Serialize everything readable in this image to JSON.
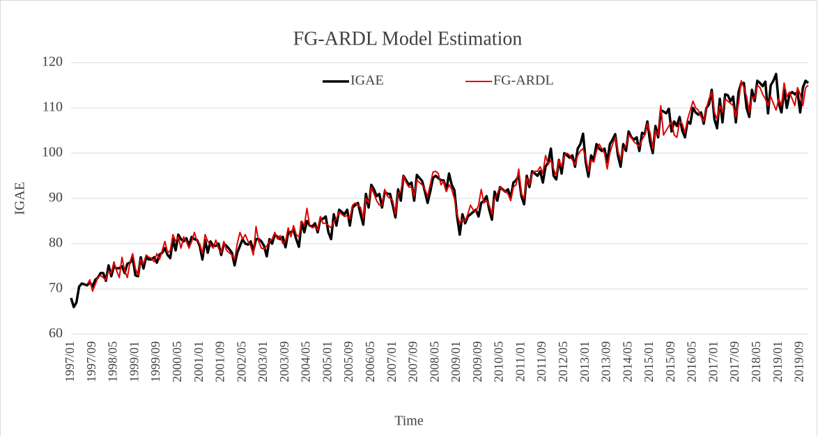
{
  "chart_data": {
    "type": "line",
    "title": "FG-ARDL Model Estimation",
    "x_label": "Time",
    "y_label": "IGAE",
    "categories": [
      "1997/01",
      null,
      null,
      null,
      null,
      null,
      null,
      null,
      "1997/09",
      null,
      null,
      null,
      null,
      null,
      null,
      null,
      "1998/05",
      null,
      null,
      null,
      null,
      null,
      null,
      null,
      "1999/01",
      null,
      null,
      null,
      null,
      null,
      null,
      null,
      "1999/09",
      null,
      null,
      null,
      null,
      null,
      null,
      null,
      "2000/05",
      null,
      null,
      null,
      null,
      null,
      null,
      null,
      "2001/01",
      null,
      null,
      null,
      null,
      null,
      null,
      null,
      "2001/09",
      null,
      null,
      null,
      null,
      null,
      null,
      null,
      "2002/05",
      null,
      null,
      null,
      null,
      null,
      null,
      null,
      "2003/01",
      null,
      null,
      null,
      null,
      null,
      null,
      null,
      "2003/09",
      null,
      null,
      null,
      null,
      null,
      null,
      null,
      "2004/05",
      null,
      null,
      null,
      null,
      null,
      null,
      null,
      "2005/01",
      null,
      null,
      null,
      null,
      null,
      null,
      null,
      "2005/09",
      null,
      null,
      null,
      null,
      null,
      null,
      null,
      "2006/05",
      null,
      null,
      null,
      null,
      null,
      null,
      null,
      "2007/01",
      null,
      null,
      null,
      null,
      null,
      null,
      null,
      "2007/09",
      null,
      null,
      null,
      null,
      null,
      null,
      null,
      "2008/05",
      null,
      null,
      null,
      null,
      null,
      null,
      null,
      "2009/01",
      null,
      null,
      null,
      null,
      null,
      null,
      null,
      "2009/09",
      null,
      null,
      null,
      null,
      null,
      null,
      null,
      "2010/05",
      null,
      null,
      null,
      null,
      null,
      null,
      null,
      "2011/01",
      null,
      null,
      null,
      null,
      null,
      null,
      null,
      "2011/09",
      null,
      null,
      null,
      null,
      null,
      null,
      null,
      "2012/05",
      null,
      null,
      null,
      null,
      null,
      null,
      null,
      "2013/01",
      null,
      null,
      null,
      null,
      null,
      null,
      null,
      "2013/09",
      null,
      null,
      null,
      null,
      null,
      null,
      null,
      "2014/05",
      null,
      null,
      null,
      null,
      null,
      null,
      null,
      "2015/01",
      null,
      null,
      null,
      null,
      null,
      null,
      null,
      "2015/09",
      null,
      null,
      null,
      null,
      null,
      null,
      null,
      "2016/05",
      null,
      null,
      null,
      null,
      null,
      null,
      null,
      "2017/01",
      null,
      null,
      null,
      null,
      null,
      null,
      null,
      "2017/09",
      null,
      null,
      null,
      null,
      null,
      null,
      null,
      "2018/05",
      null,
      null,
      null,
      null,
      null,
      null,
      null,
      "2019/01",
      null,
      null,
      null,
      null,
      null,
      null,
      null,
      "2019/09",
      null,
      null,
      null
    ],
    "series": [
      {
        "name": "IGAE",
        "color": "#000000",
        "width": 3.5,
        "values": [
          68,
          66,
          67,
          70.5,
          71.2,
          71,
          70.8,
          71.5,
          70.5,
          72,
          72.5,
          73.5,
          73.5,
          71.8,
          75.2,
          72.8,
          75,
          74.5,
          74.6,
          75,
          73.5,
          75.6,
          75.8,
          76.8,
          73,
          72.8,
          77,
          74.5,
          77,
          76.5,
          76.5,
          77,
          75.8,
          77.6,
          78,
          79,
          77.5,
          76.8,
          81,
          78.5,
          82,
          81,
          80.5,
          81.2,
          79.6,
          81.5,
          81,
          80.8,
          79.5,
          76.5,
          80.8,
          78,
          80.5,
          79.5,
          79.5,
          80,
          77.5,
          80,
          79.5,
          78.8,
          78,
          75.2,
          78,
          79.5,
          81,
          80,
          79.8,
          80.5,
          78.5,
          81,
          81,
          80.5,
          79.5,
          77.2,
          81,
          80,
          82,
          81.5,
          81,
          81.5,
          79.2,
          82.5,
          82.5,
          83,
          81,
          79.3,
          84.8,
          82.5,
          85,
          84,
          83.8,
          84.5,
          82.5,
          85.5,
          85.5,
          86,
          82.5,
          81,
          86.5,
          84,
          87.5,
          87,
          86.5,
          87.5,
          84,
          88,
          88.5,
          89,
          86.5,
          84.2,
          91,
          88,
          93,
          92,
          90.5,
          91,
          88,
          91.5,
          91,
          91,
          88.5,
          85.8,
          92,
          89.5,
          95,
          94,
          93,
          93.5,
          89.5,
          95.2,
          94.5,
          93.8,
          91.5,
          89,
          91.5,
          94.5,
          95,
          94.5,
          94,
          94,
          91.8,
          95.5,
          93,
          91.8,
          86,
          82,
          86.5,
          84.5,
          86,
          86.5,
          87,
          87.5,
          86,
          89,
          89.5,
          90.5,
          87.5,
          85.3,
          91.5,
          89.5,
          92.5,
          92,
          91.5,
          92,
          90,
          93.5,
          94,
          95,
          90.5,
          88.7,
          95,
          92.5,
          96,
          95.5,
          95,
          96,
          93.5,
          97,
          98,
          101,
          95,
          94.2,
          98.5,
          95.5,
          100,
          99.5,
          99,
          99.5,
          97,
          101,
          102,
          104.3,
          98,
          94.8,
          99.5,
          98.5,
          102,
          101,
          100.5,
          101,
          98,
          102,
          103,
          104.2,
          99.5,
          97,
          102,
          100.5,
          104.8,
          103.5,
          103,
          103.5,
          100.5,
          104.5,
          104.2,
          107,
          102.5,
          100,
          106,
          103.5,
          109.5,
          109.2,
          108.8,
          109.8,
          104.8,
          107,
          106,
          108,
          105,
          103.5,
          107,
          106.5,
          110,
          109,
          108.5,
          109,
          106.5,
          110,
          110.8,
          114,
          107.5,
          105.5,
          112,
          106.8,
          113,
          112.8,
          111.5,
          112.5,
          106.8,
          113.5,
          115.5,
          115.5,
          110,
          108,
          114,
          111.5,
          116,
          115.5,
          114.8,
          115.8,
          108.8,
          115,
          116,
          117.5,
          111,
          109,
          114,
          110,
          113,
          113.5,
          113,
          113.5,
          109,
          114.5,
          116,
          115.5
        ]
      },
      {
        "name": "FG-ARDL",
        "color": "#e00000",
        "width": 2,
        "values": [
          null,
          null,
          null,
          null,
          null,
          null,
          71,
          72,
          69.5,
          71,
          72.5,
          73,
          72.5,
          72,
          74,
          73.5,
          76,
          74,
          72.5,
          77,
          74,
          72.5,
          76,
          77.8,
          74.5,
          73,
          76.5,
          75.5,
          77.5,
          77,
          76.8,
          76,
          77.8,
          76.5,
          78.5,
          80.5,
          78,
          78.5,
          82,
          80.5,
          81.5,
          79,
          81.5,
          80.5,
          79,
          80.5,
          82.5,
          80.5,
          80,
          77.8,
          82,
          80.5,
          79.8,
          79,
          80.8,
          79,
          78,
          80.5,
          78.5,
          78,
          77.5,
          76.5,
          80,
          82.5,
          81,
          82,
          80.5,
          79.5,
          77.5,
          83.8,
          80.5,
          79,
          78.8,
          79.5,
          80.5,
          81,
          82.5,
          81,
          81.8,
          80,
          80.5,
          83.5,
          81.5,
          84,
          82,
          81.5,
          85,
          84,
          87.8,
          84,
          83.5,
          83.8,
          83,
          86,
          84.5,
          84.5,
          84,
          83.5,
          85,
          85.5,
          87,
          86.5,
          86,
          86.2,
          85.5,
          88.5,
          89,
          88.5,
          88,
          85.5,
          90,
          89,
          92.5,
          91,
          89.5,
          88.5,
          88.5,
          92,
          90.5,
          90,
          89.5,
          86.5,
          91,
          91.5,
          95,
          93.5,
          92.5,
          92.5,
          90.5,
          94,
          93.5,
          93,
          92,
          90.5,
          93,
          95.8,
          96,
          95.5,
          93,
          93.8,
          91.5,
          93,
          92,
          90,
          86.5,
          84.5,
          85.5,
          85,
          86.5,
          88.5,
          87.5,
          87,
          88.5,
          92,
          89,
          89.5,
          88.5,
          86.5,
          90,
          91,
          92.5,
          92,
          91.5,
          91,
          89.5,
          92.5,
          93,
          96.5,
          91,
          90,
          94.5,
          93,
          95.5,
          96,
          96,
          97,
          95.5,
          99.5,
          97.5,
          98.5,
          96.5,
          95,
          98.5,
          97,
          99.5,
          100,
          99.5,
          98.5,
          97.5,
          99.5,
          100.5,
          101,
          99,
          96,
          98.5,
          98,
          100.5,
          102,
          101,
          100,
          96.5,
          100,
          102,
          103.5,
          100.5,
          98.5,
          101,
          101.5,
          104,
          103.5,
          102.5,
          102,
          101.5,
          103,
          104,
          106.5,
          104.5,
          101,
          105,
          104,
          110.5,
          104,
          105,
          106,
          107,
          104,
          103.5,
          107,
          106.5,
          104.5,
          107.5,
          109.5,
          111.5,
          110,
          109.5,
          108,
          107,
          110,
          112,
          113.5,
          109,
          107.5,
          110.5,
          109,
          112,
          111.5,
          111,
          110.5,
          108,
          111,
          116,
          114.5,
          112.5,
          109,
          112.5,
          112,
          115,
          114.5,
          113,
          112,
          110.5,
          112.5,
          111,
          109.5,
          112,
          110.5,
          115.5,
          112.5,
          113.5,
          112,
          110.5,
          114.5,
          113,
          110.5,
          114.5,
          115
        ]
      }
    ],
    "ylim": [
      60,
      120
    ],
    "yticks": [
      60,
      70,
      80,
      90,
      100,
      110,
      120
    ],
    "grid": true,
    "legend": "top"
  }
}
